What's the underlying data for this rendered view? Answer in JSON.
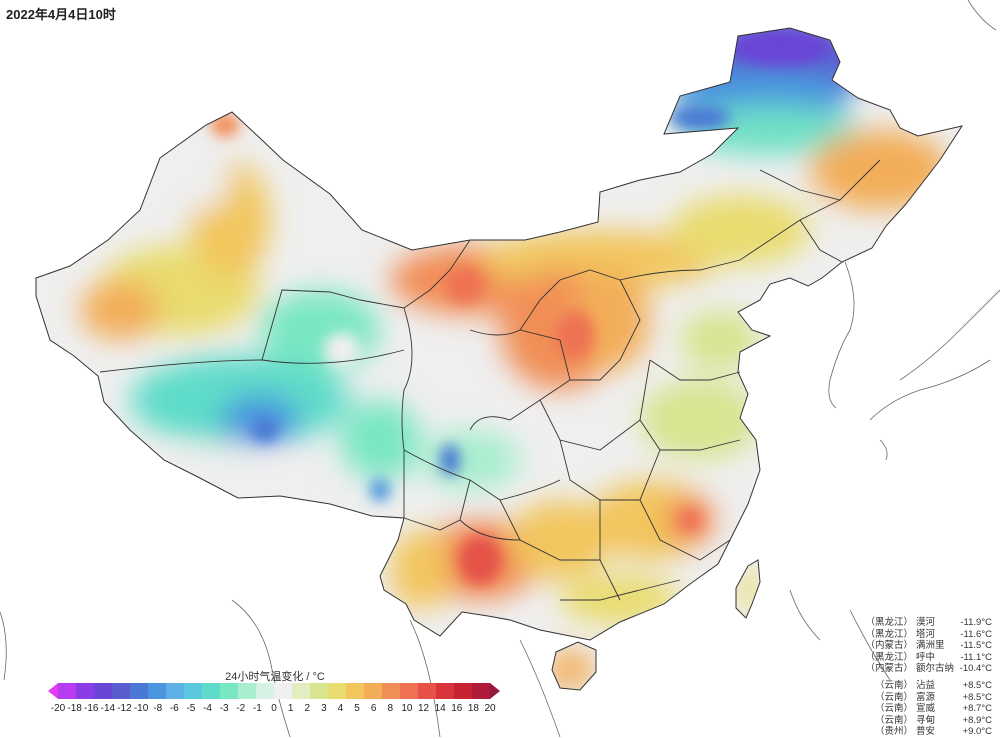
{
  "timestamp": "2022年4月4日10时",
  "legend": {
    "title": "24小时气温变化 / °C",
    "ticks": [
      "-20",
      "-18",
      "-16",
      "-14",
      "-12",
      "-10",
      "-8",
      "-6",
      "-5",
      "-4",
      "-3",
      "-2",
      "-1",
      "0",
      "1",
      "2",
      "3",
      "4",
      "5",
      "6",
      "8",
      "10",
      "12",
      "14",
      "16",
      "18",
      "20"
    ],
    "colors": [
      "#e23cf0",
      "#b83cf0",
      "#8a3ce6",
      "#6a45d6",
      "#5a5cd0",
      "#4a78d4",
      "#4a95de",
      "#5bb0e6",
      "#5cc7df",
      "#5fdcc9",
      "#79e7c2",
      "#a8eecf",
      "#d7f2e4",
      "#f0f0f0",
      "#e2edc2",
      "#d8e48f",
      "#e9dc6e",
      "#f2c65d",
      "#f3ad58",
      "#f18e56",
      "#ee7253",
      "#e65248",
      "#d9343c",
      "#c62232",
      "#b01a3a",
      "#96163f"
    ]
  },
  "stations": {
    "cold": [
      {
        "region": "（黑龙江）",
        "name": "漠河",
        "value": "-11.9°C"
      },
      {
        "region": "（黑龙江）",
        "name": "塔河",
        "value": "-11.6°C"
      },
      {
        "region": "（内蒙古）",
        "name": "满洲里",
        "value": "-11.5°C"
      },
      {
        "region": "（黑龙江）",
        "name": "呼中",
        "value": "-11.1°C"
      },
      {
        "region": "（内蒙古）",
        "name": "额尔古纳",
        "value": "-10.4°C"
      }
    ],
    "warm": [
      {
        "region": "（云南）",
        "name": "沾益",
        "value": "+8.5°C"
      },
      {
        "region": "（云南）",
        "name": "富源",
        "value": "+8.5°C"
      },
      {
        "region": "（云南）",
        "name": "宣威",
        "value": "+8.7°C"
      },
      {
        "region": "（云南）",
        "name": "寻甸",
        "value": "+8.9°C"
      },
      {
        "region": "（贵州）",
        "name": "普安",
        "value": "+9.0°C"
      }
    ]
  },
  "map_colors": {
    "land_neutral": "#efefef",
    "ocean": "#ffffff",
    "border": "#333333",
    "coast": "#555555"
  }
}
